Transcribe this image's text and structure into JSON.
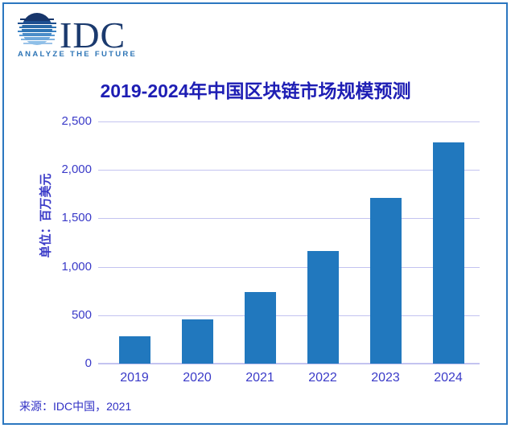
{
  "logo": {
    "name": "IDC",
    "tagline": "ANALYZE THE FUTURE",
    "icon": "globe-stripes-icon",
    "colors": {
      "navy": "#17366b",
      "mid_blue": "#2e75b6",
      "light_blue": "#8ebfe8"
    }
  },
  "chart_data": {
    "type": "bar",
    "title": "2019-2024年中国区块链市场规模预测",
    "categories": [
      "2019",
      "2020",
      "2021",
      "2022",
      "2023",
      "2024"
    ],
    "values": [
      285,
      455,
      740,
      1165,
      1710,
      2285
    ],
    "xlabel": "",
    "ylabel": "单位：百万美元",
    "ylim": [
      0,
      2500
    ],
    "yticks": [
      {
        "label": "0",
        "value": 0
      },
      {
        "label": "500",
        "value": 500
      },
      {
        "label": "1,000",
        "value": 1000
      },
      {
        "label": "1,500",
        "value": 1500
      },
      {
        "label": "2,000",
        "value": 2000
      },
      {
        "label": "2,500",
        "value": 2500
      }
    ],
    "grid": true,
    "legend": false,
    "bar_color": "#2178be",
    "gridline_color": "#c3c3f0",
    "axis_text_color": "#3a3ac8",
    "title_color": "#1e1eb4"
  },
  "footer": {
    "source": "来源：IDC中国，2021"
  }
}
